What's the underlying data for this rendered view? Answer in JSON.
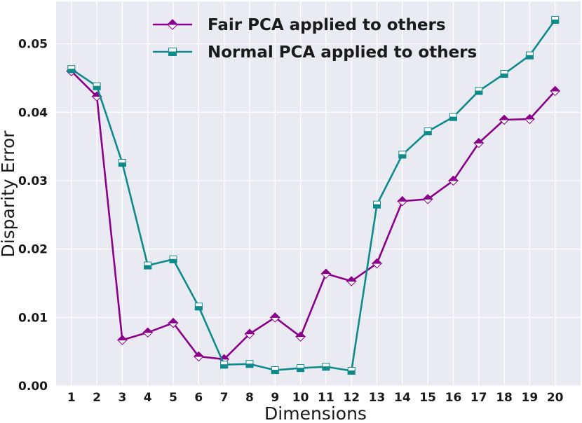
{
  "chart_data": {
    "type": "line",
    "xlabel": "Dimensions",
    "ylabel": "Disparity Error",
    "x": [
      1,
      2,
      3,
      4,
      5,
      6,
      7,
      8,
      9,
      10,
      11,
      12,
      13,
      14,
      15,
      16,
      17,
      18,
      19,
      20
    ],
    "xticks": [
      "1",
      "2",
      "3",
      "4",
      "5",
      "6",
      "7",
      "8",
      "9",
      "10",
      "11",
      "12",
      "13",
      "14",
      "15",
      "16",
      "17",
      "18",
      "19",
      "20"
    ],
    "xlim": [
      0.4,
      21
    ],
    "yticks": [
      "0.00",
      "0.01",
      "0.02",
      "0.03",
      "0.04",
      "0.05"
    ],
    "ylim": [
      0.0,
      0.0562
    ],
    "grid": true,
    "legend": "top-center",
    "series": [
      {
        "name": "Fair PCA applied to others",
        "color": "#8b008b",
        "marker": "diamond",
        "values": [
          0.046,
          0.0423,
          0.0067,
          0.0078,
          0.0092,
          0.0043,
          0.0039,
          0.0076,
          0.01,
          0.0072,
          0.0164,
          0.0153,
          0.0179,
          0.027,
          0.0273,
          0.03,
          0.0355,
          0.0389,
          0.039,
          0.0431
        ]
      },
      {
        "name": "Normal PCA applied to others",
        "color": "#0e8a8a",
        "marker": "square",
        "values": [
          0.0463,
          0.0438,
          0.0326,
          0.0176,
          0.0185,
          0.0116,
          0.0031,
          0.0032,
          0.0023,
          0.0026,
          0.0028,
          0.0022,
          0.0265,
          0.0338,
          0.0372,
          0.0393,
          0.0431,
          0.0456,
          0.0483,
          0.0535
        ]
      }
    ]
  }
}
